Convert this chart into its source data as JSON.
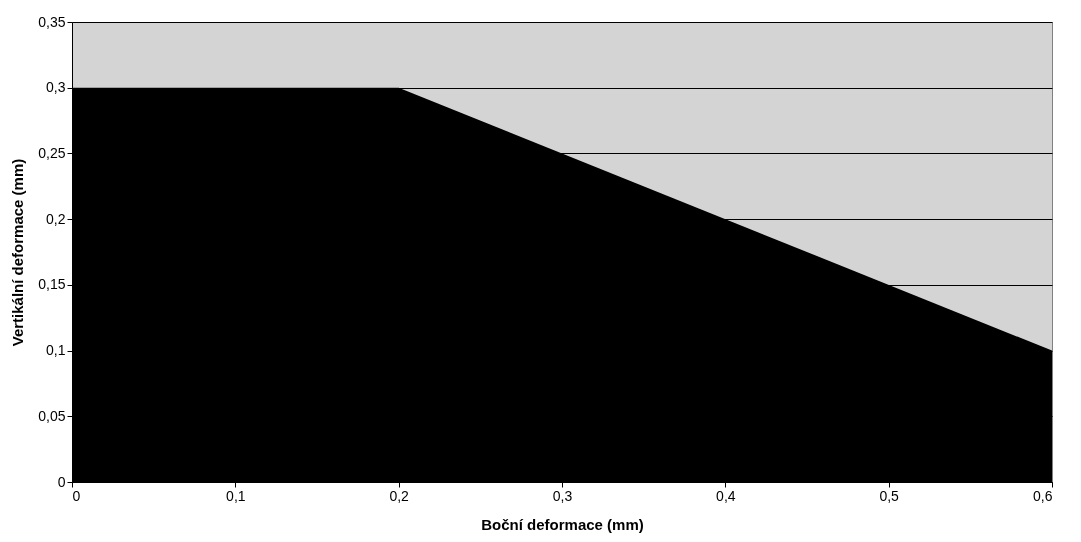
{
  "chart_data": {
    "type": "area",
    "xlabel": "Boční deformace (mm)",
    "ylabel": "Vertikální deformace (mm)",
    "x": [
      0,
      0.2,
      0.6
    ],
    "series": [
      {
        "color": "#000000",
        "values": [
          0.3,
          0.3,
          0.1
        ]
      }
    ],
    "xlim": [
      0,
      0.6
    ],
    "ylim": [
      0,
      0.35
    ],
    "xticks": [
      0,
      {
        "value": 0.1,
        "label": "0,1"
      },
      {
        "value": 0.2,
        "label": "0,2"
      },
      {
        "value": 0.3,
        "label": "0,3"
      },
      {
        "value": 0.4,
        "label": "0,4"
      },
      {
        "value": 0.5,
        "label": "0,5"
      },
      {
        "value": 0.6,
        "label": "0,6"
      }
    ],
    "yticks": [
      0,
      {
        "value": 0.05,
        "label": "0,05"
      },
      {
        "value": 0.1,
        "label": "0,1"
      },
      {
        "value": 0.15,
        "label": "0,15"
      },
      {
        "value": 0.2,
        "label": "0,2"
      },
      {
        "value": 0.25,
        "label": "0,25"
      },
      {
        "value": 0.3,
        "label": "0,3"
      },
      {
        "value": 0.35,
        "label": "0,35"
      }
    ],
    "grid": "y"
  }
}
